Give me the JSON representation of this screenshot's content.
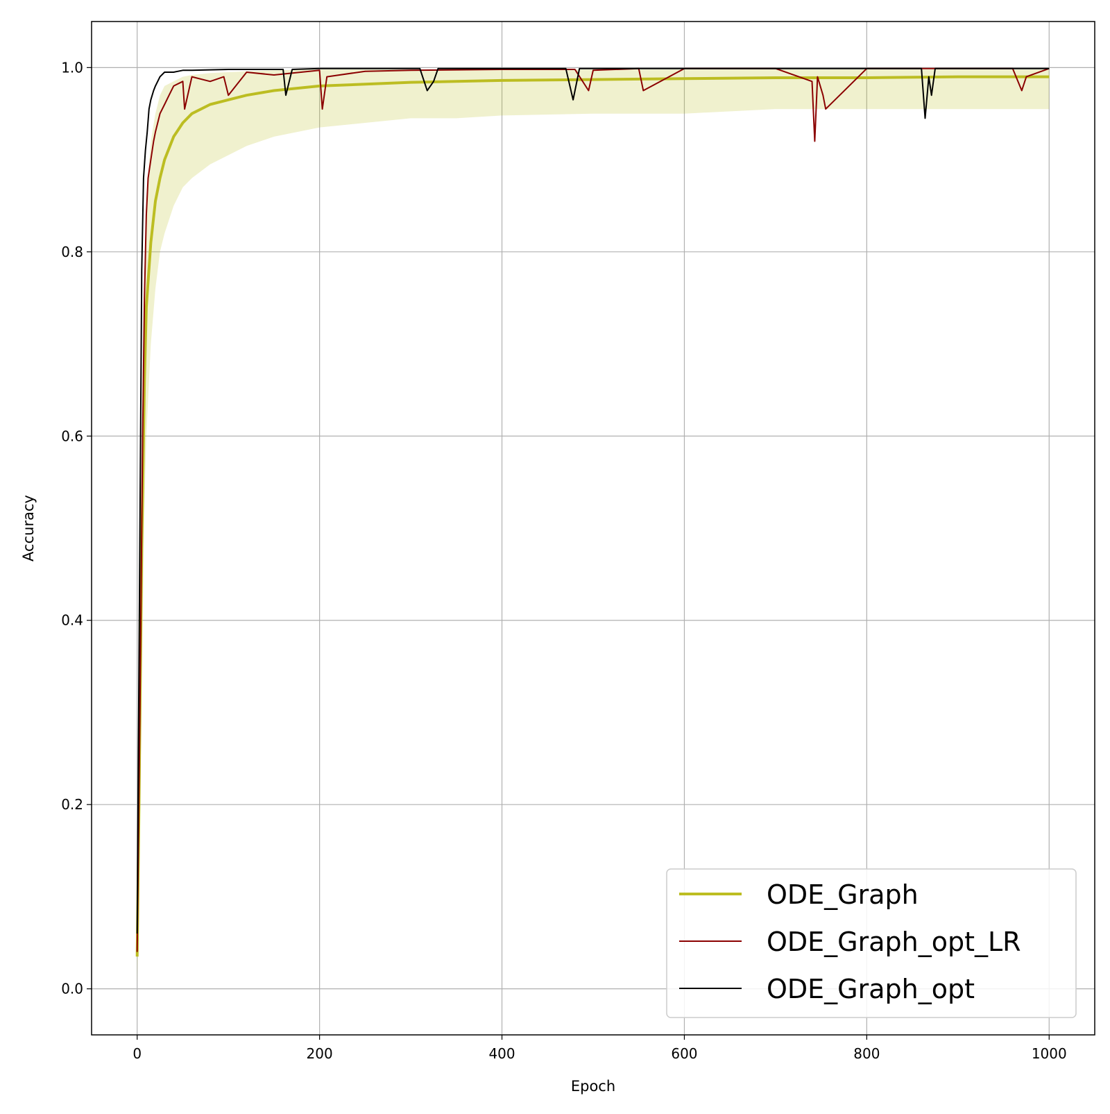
{
  "chart_data": {
    "type": "line",
    "title": "",
    "xlabel": "Epoch",
    "ylabel": "Accuracy",
    "xlim": [
      -50,
      1050
    ],
    "ylim": [
      -0.05,
      1.05
    ],
    "xticks": [
      0,
      200,
      400,
      600,
      800,
      1000
    ],
    "xtick_labels": [
      "0",
      "200",
      "400",
      "600",
      "800",
      "1000"
    ],
    "yticks": [
      0.0,
      0.2,
      0.4,
      0.6,
      0.8,
      1.0
    ],
    "ytick_labels": [
      "0.0",
      "0.2",
      "0.4",
      "0.6",
      "0.8",
      "1.0"
    ],
    "grid": true,
    "legend_position": "lower-right",
    "series": [
      {
        "name": "ODE_Graph",
        "color": "#bcbd22",
        "style": "thick",
        "x": [
          0,
          2,
          5,
          8,
          10,
          15,
          20,
          25,
          30,
          40,
          50,
          60,
          80,
          100,
          120,
          150,
          200,
          250,
          300,
          350,
          400,
          500,
          600,
          700,
          800,
          900,
          1000
        ],
        "y": [
          0.035,
          0.2,
          0.48,
          0.66,
          0.74,
          0.81,
          0.855,
          0.88,
          0.9,
          0.925,
          0.94,
          0.95,
          0.96,
          0.965,
          0.97,
          0.975,
          0.98,
          0.982,
          0.984,
          0.985,
          0.986,
          0.987,
          0.988,
          0.989,
          0.989,
          0.99,
          0.99
        ],
        "band_lower": [
          0.005,
          0.1,
          0.33,
          0.52,
          0.6,
          0.7,
          0.76,
          0.8,
          0.82,
          0.85,
          0.87,
          0.88,
          0.895,
          0.905,
          0.915,
          0.925,
          0.935,
          0.94,
          0.945,
          0.945,
          0.948,
          0.95,
          0.95,
          0.955,
          0.955,
          0.955,
          0.955
        ],
        "band_upper": [
          0.06,
          0.3,
          0.6,
          0.78,
          0.86,
          0.92,
          0.95,
          0.97,
          0.98,
          0.985,
          0.99,
          0.992,
          0.994,
          0.995,
          0.996,
          0.997,
          0.998,
          0.998,
          0.998,
          0.998,
          0.998,
          0.998,
          0.998,
          0.998,
          0.998,
          0.998,
          0.998
        ]
      },
      {
        "name": "ODE_Graph_opt_LR",
        "color": "#8b0000",
        "style": "thin",
        "x": [
          0,
          3,
          6,
          8,
          10,
          12,
          15,
          18,
          20,
          25,
          30,
          35,
          40,
          50,
          52,
          60,
          80,
          95,
          100,
          120,
          150,
          200,
          203,
          208,
          250,
          300,
          400,
          480,
          495,
          500,
          550,
          555,
          600,
          700,
          740,
          743,
          746,
          752,
          755,
          800,
          900,
          960,
          970,
          975,
          1000
        ],
        "y": [
          0.04,
          0.3,
          0.6,
          0.75,
          0.84,
          0.88,
          0.9,
          0.92,
          0.93,
          0.95,
          0.96,
          0.97,
          0.98,
          0.985,
          0.955,
          0.99,
          0.985,
          0.99,
          0.97,
          0.995,
          0.992,
          0.997,
          0.955,
          0.99,
          0.996,
          0.997,
          0.998,
          0.998,
          0.975,
          0.997,
          0.999,
          0.975,
          0.999,
          0.999,
          0.985,
          0.92,
          0.99,
          0.97,
          0.955,
          0.999,
          0.999,
          0.999,
          0.975,
          0.99,
          0.999
        ]
      },
      {
        "name": "ODE_Graph_opt",
        "color": "#000000",
        "style": "thin",
        "x": [
          0,
          3,
          5,
          7,
          9,
          11,
          13,
          15,
          18,
          20,
          25,
          30,
          40,
          50,
          60,
          100,
          160,
          163,
          170,
          200,
          250,
          310,
          318,
          325,
          330,
          400,
          470,
          478,
          485,
          500,
          600,
          700,
          800,
          860,
          864,
          868,
          871,
          875,
          1000
        ],
        "y": [
          0.06,
          0.5,
          0.78,
          0.88,
          0.91,
          0.93,
          0.955,
          0.965,
          0.975,
          0.98,
          0.99,
          0.995,
          0.995,
          0.997,
          0.997,
          0.998,
          0.998,
          0.97,
          0.998,
          0.999,
          0.999,
          0.999,
          0.975,
          0.985,
          0.999,
          0.999,
          0.999,
          0.965,
          0.999,
          0.999,
          0.999,
          0.999,
          0.999,
          0.999,
          0.945,
          0.99,
          0.97,
          0.999,
          0.999
        ]
      }
    ]
  }
}
